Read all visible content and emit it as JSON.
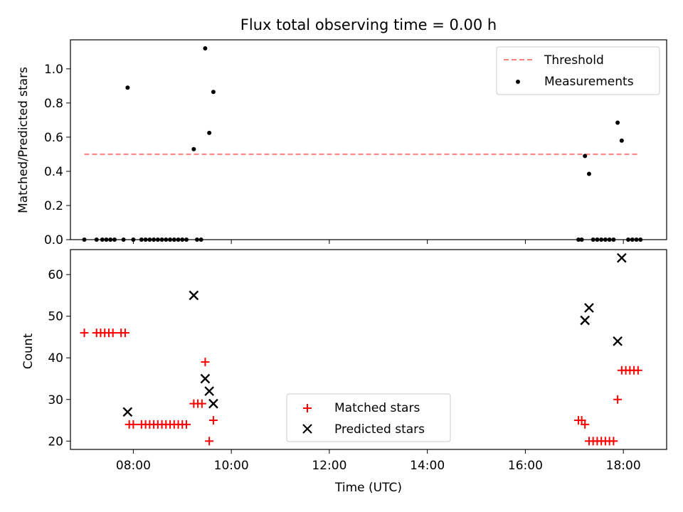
{
  "chart_data": [
    {
      "type": "scatter",
      "title": "Flux total observing time = 0.00 h",
      "xlabel": "",
      "ylabel": "Matched/Predicted stars",
      "xlim": [
        "06:43",
        "18:53"
      ],
      "ylim": [
        0,
        1.17
      ],
      "yticks": [
        "0.0",
        "0.2",
        "0.4",
        "0.6",
        "0.8",
        "1.0"
      ],
      "legend": {
        "position": "top-right",
        "entries": [
          "Threshold",
          "Measurements"
        ]
      },
      "series": [
        {
          "name": "Threshold",
          "kind": "dashed-line",
          "color": "#ff7f7f",
          "points": [
            {
              "x": "07:00",
              "y": 0.5
            },
            {
              "x": "18:20",
              "y": 0.5
            }
          ]
        },
        {
          "name": "Measurements",
          "kind": "dots",
          "color": "#000000",
          "points": [
            {
              "x": "07:00",
              "y": 0.0
            },
            {
              "x": "07:15",
              "y": 0.0
            },
            {
              "x": "07:22",
              "y": 0.0
            },
            {
              "x": "07:27",
              "y": 0.0
            },
            {
              "x": "07:32",
              "y": 0.0
            },
            {
              "x": "07:37",
              "y": 0.0
            },
            {
              "x": "07:48",
              "y": 0.0
            },
            {
              "x": "07:53",
              "y": 0.89
            },
            {
              "x": "08:00",
              "y": 0.0
            },
            {
              "x": "08:10",
              "y": 0.0
            },
            {
              "x": "08:15",
              "y": 0.0
            },
            {
              "x": "08:20",
              "y": 0.0
            },
            {
              "x": "08:25",
              "y": 0.0
            },
            {
              "x": "08:30",
              "y": 0.0
            },
            {
              "x": "08:35",
              "y": 0.0
            },
            {
              "x": "08:40",
              "y": 0.0
            },
            {
              "x": "08:45",
              "y": 0.0
            },
            {
              "x": "08:50",
              "y": 0.0
            },
            {
              "x": "08:55",
              "y": 0.0
            },
            {
              "x": "09:00",
              "y": 0.0
            },
            {
              "x": "09:05",
              "y": 0.0
            },
            {
              "x": "09:14",
              "y": 0.53
            },
            {
              "x": "09:18",
              "y": 0.0
            },
            {
              "x": "09:23",
              "y": 0.0
            },
            {
              "x": "09:28",
              "y": 1.12
            },
            {
              "x": "09:33",
              "y": 0.625
            },
            {
              "x": "09:38",
              "y": 0.865
            },
            {
              "x": "17:05",
              "y": 0.0
            },
            {
              "x": "17:09",
              "y": 0.0
            },
            {
              "x": "17:13",
              "y": 0.49
            },
            {
              "x": "17:18",
              "y": 0.385
            },
            {
              "x": "17:23",
              "y": 0.0
            },
            {
              "x": "17:28",
              "y": 0.0
            },
            {
              "x": "17:33",
              "y": 0.0
            },
            {
              "x": "17:38",
              "y": 0.0
            },
            {
              "x": "17:43",
              "y": 0.0
            },
            {
              "x": "17:48",
              "y": 0.0
            },
            {
              "x": "17:53",
              "y": 0.685
            },
            {
              "x": "17:58",
              "y": 0.58
            },
            {
              "x": "18:06",
              "y": 0.0
            },
            {
              "x": "18:11",
              "y": 0.0
            },
            {
              "x": "18:16",
              "y": 0.0
            },
            {
              "x": "18:21",
              "y": 0.0
            }
          ]
        }
      ]
    },
    {
      "type": "scatter",
      "title": "",
      "xlabel": "Time (UTC)",
      "ylabel": "Count",
      "xlim": [
        "06:43",
        "18:53"
      ],
      "ylim": [
        18,
        66
      ],
      "xticks": [
        "08:00",
        "10:00",
        "12:00",
        "14:00",
        "16:00",
        "18:00"
      ],
      "yticks": [
        "20",
        "30",
        "40",
        "50",
        "60"
      ],
      "legend": {
        "position": "lower-center",
        "entries": [
          "Matched stars",
          "Predicted stars"
        ]
      },
      "series": [
        {
          "name": "Matched stars",
          "marker": "plus",
          "color": "#ff0000",
          "points": [
            {
              "x": "07:00",
              "y": 46
            },
            {
              "x": "07:15",
              "y": 46
            },
            {
              "x": "07:20",
              "y": 46
            },
            {
              "x": "07:25",
              "y": 46
            },
            {
              "x": "07:30",
              "y": 46
            },
            {
              "x": "07:35",
              "y": 46
            },
            {
              "x": "07:45",
              "y": 46
            },
            {
              "x": "07:50",
              "y": 46
            },
            {
              "x": "07:55",
              "y": 24
            },
            {
              "x": "08:00",
              "y": 24
            },
            {
              "x": "08:10",
              "y": 24
            },
            {
              "x": "08:15",
              "y": 24
            },
            {
              "x": "08:20",
              "y": 24
            },
            {
              "x": "08:25",
              "y": 24
            },
            {
              "x": "08:30",
              "y": 24
            },
            {
              "x": "08:35",
              "y": 24
            },
            {
              "x": "08:40",
              "y": 24
            },
            {
              "x": "08:45",
              "y": 24
            },
            {
              "x": "08:50",
              "y": 24
            },
            {
              "x": "08:55",
              "y": 24
            },
            {
              "x": "09:00",
              "y": 24
            },
            {
              "x": "09:05",
              "y": 24
            },
            {
              "x": "09:14",
              "y": 29
            },
            {
              "x": "09:19",
              "y": 29
            },
            {
              "x": "09:24",
              "y": 29
            },
            {
              "x": "09:28",
              "y": 39
            },
            {
              "x": "09:33",
              "y": 20
            },
            {
              "x": "09:38",
              "y": 25
            },
            {
              "x": "17:05",
              "y": 25
            },
            {
              "x": "17:09",
              "y": 25
            },
            {
              "x": "17:13",
              "y": 24
            },
            {
              "x": "17:18",
              "y": 20
            },
            {
              "x": "17:23",
              "y": 20
            },
            {
              "x": "17:28",
              "y": 20
            },
            {
              "x": "17:33",
              "y": 20
            },
            {
              "x": "17:38",
              "y": 20
            },
            {
              "x": "17:43",
              "y": 20
            },
            {
              "x": "17:48",
              "y": 20
            },
            {
              "x": "17:53",
              "y": 30
            },
            {
              "x": "17:58",
              "y": 37
            },
            {
              "x": "18:03",
              "y": 37
            },
            {
              "x": "18:08",
              "y": 37
            },
            {
              "x": "18:13",
              "y": 37
            },
            {
              "x": "18:18",
              "y": 37
            }
          ]
        },
        {
          "name": "Predicted stars",
          "marker": "x",
          "color": "#000000",
          "points": [
            {
              "x": "07:53",
              "y": 27
            },
            {
              "x": "09:14",
              "y": 55
            },
            {
              "x": "09:28",
              "y": 35
            },
            {
              "x": "09:33",
              "y": 32
            },
            {
              "x": "09:38",
              "y": 29
            },
            {
              "x": "17:13",
              "y": 49
            },
            {
              "x": "17:18",
              "y": 52
            },
            {
              "x": "17:53",
              "y": 44
            },
            {
              "x": "17:58",
              "y": 64
            }
          ]
        }
      ]
    }
  ]
}
